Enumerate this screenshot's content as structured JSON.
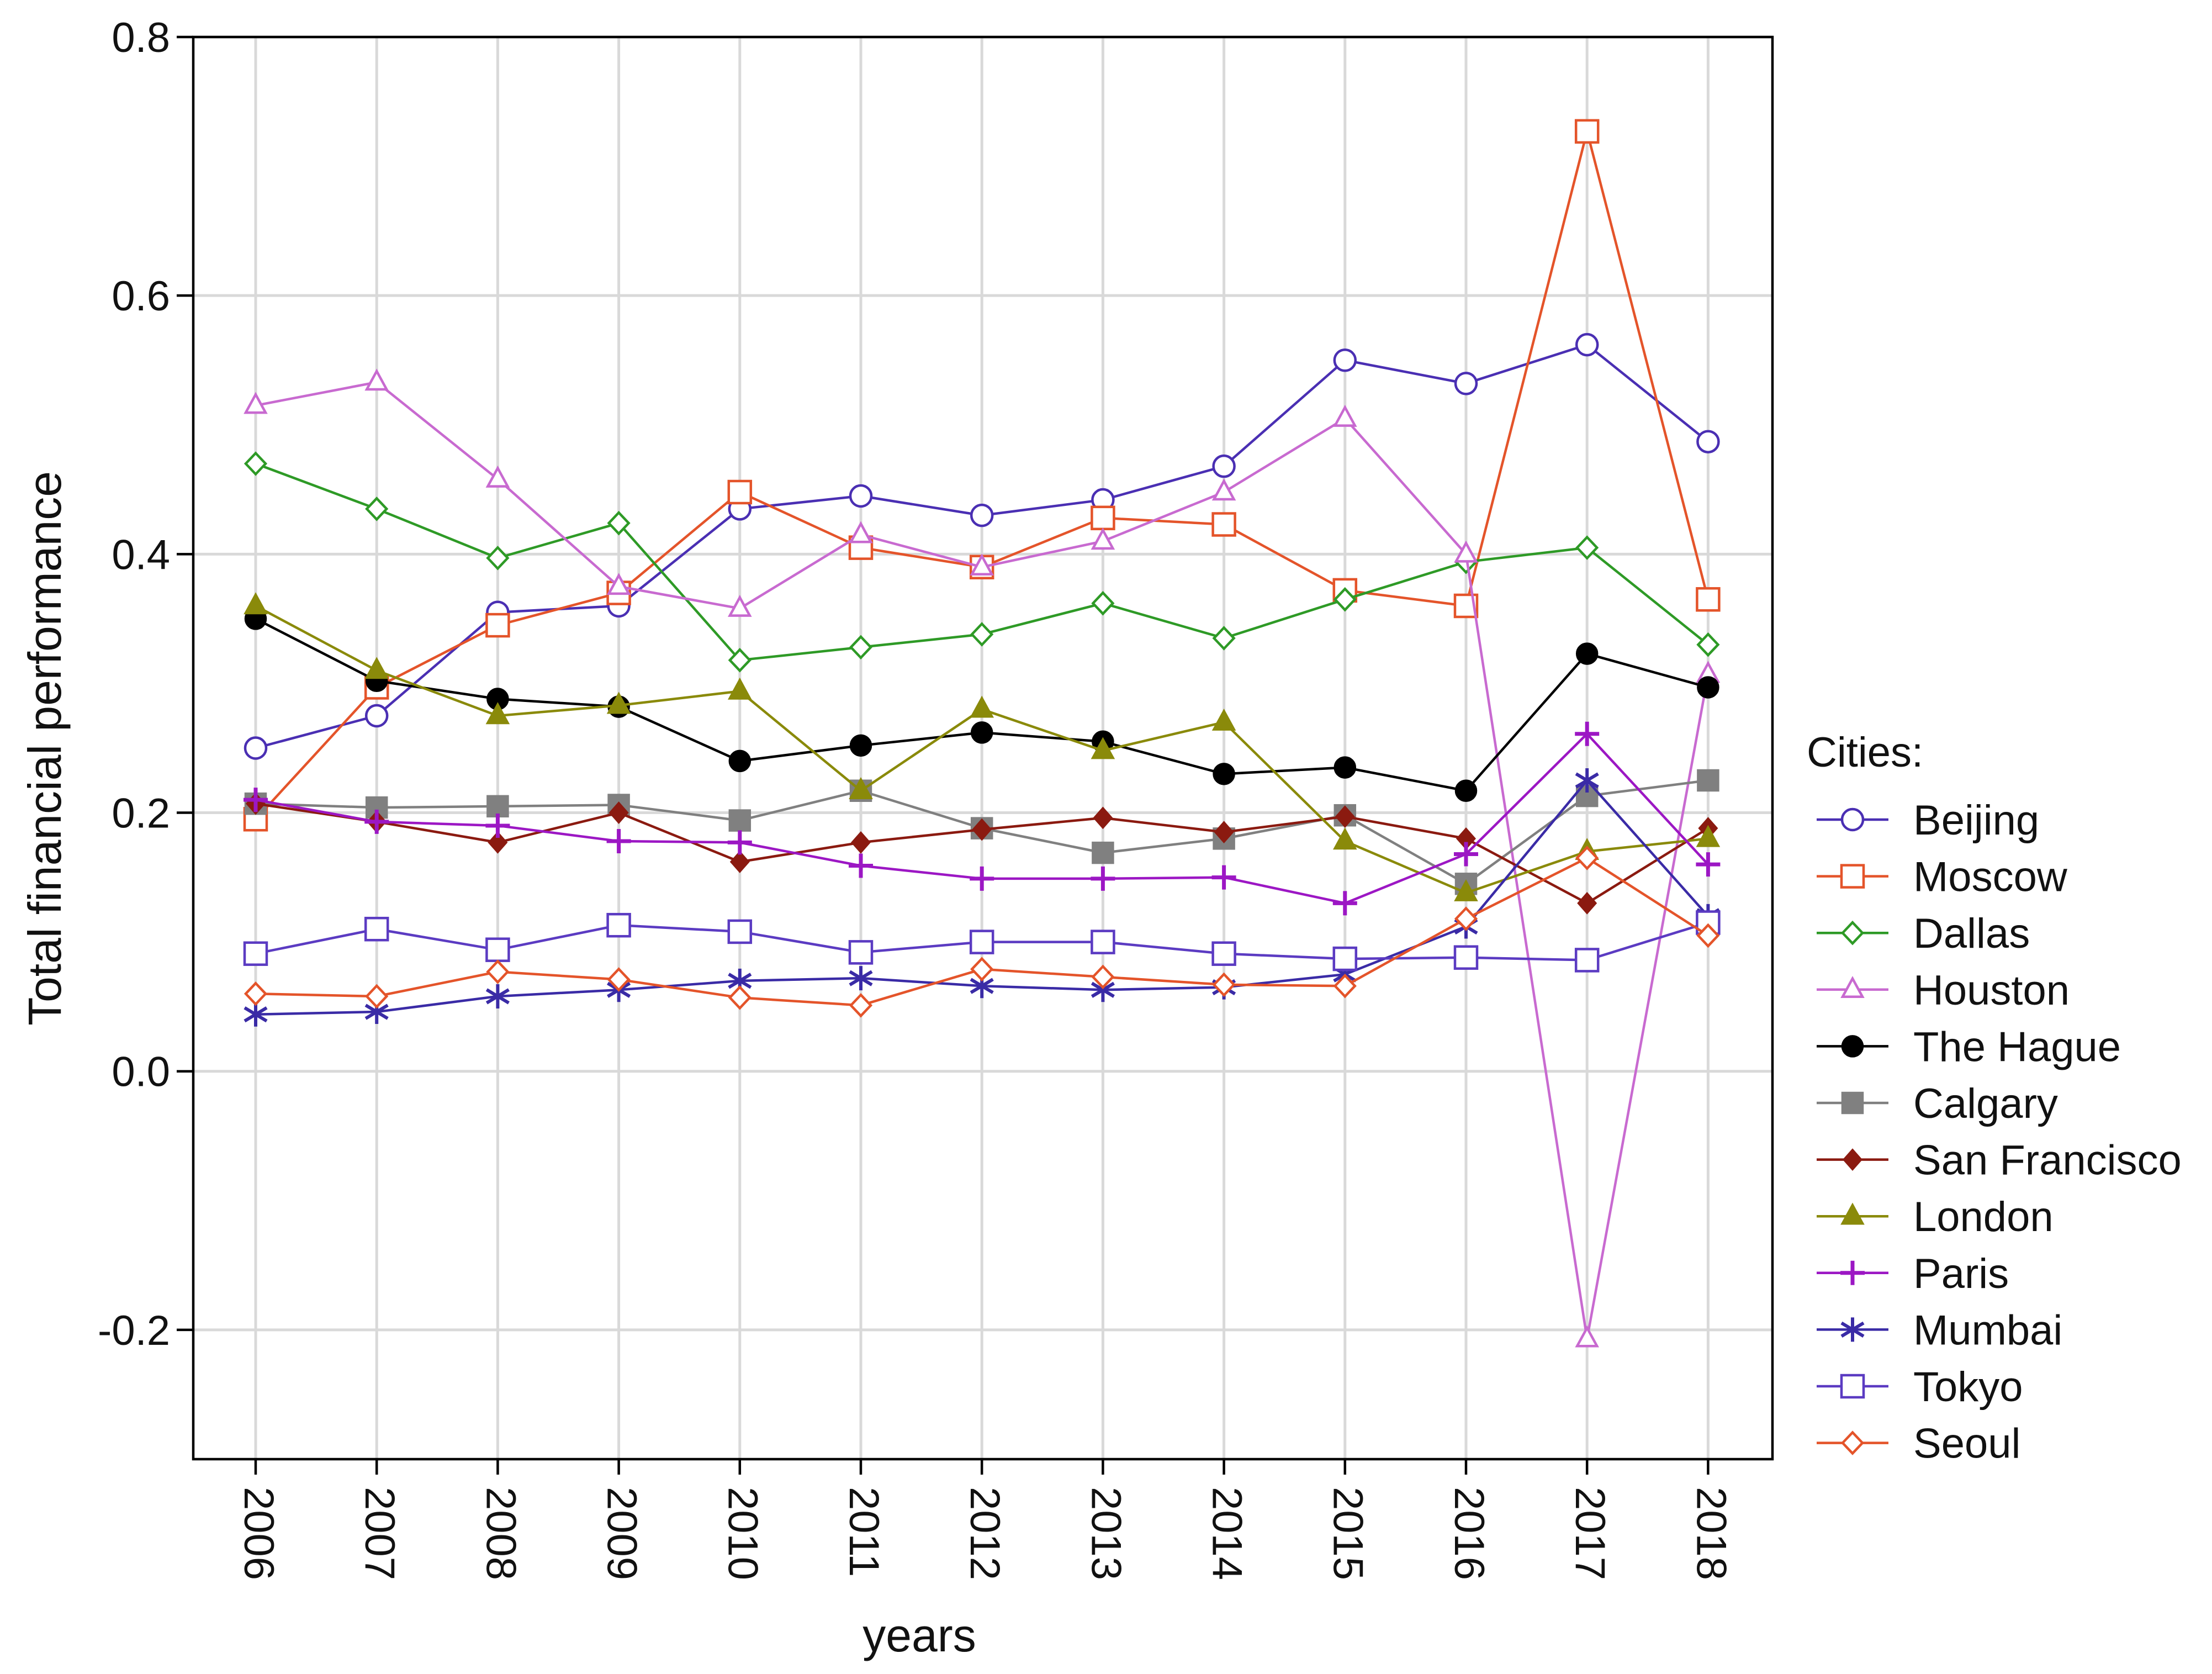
{
  "chart_data": {
    "type": "line",
    "title": "",
    "xlabel": "years",
    "ylabel": "Total financial performance",
    "ylim": [
      -0.3,
      0.8
    ],
    "yticks": [
      "0.8",
      "0.6",
      "0.4",
      "0.2",
      "0.0",
      "-0.2"
    ],
    "ytick_values": [
      0.8,
      0.6,
      0.4,
      0.2,
      0.0,
      -0.2
    ],
    "grid": true,
    "legend_title": "Cities:",
    "legend_position": "right",
    "categories": [
      "2006",
      "2007",
      "2008",
      "2009",
      "2010",
      "2011",
      "2012",
      "2013",
      "2014",
      "2015",
      "2016",
      "2017",
      "2018"
    ],
    "series": [
      {
        "name": "Beijing",
        "color": "#4a2fb3",
        "marker": "circle-open",
        "values": [
          0.25,
          0.275,
          0.355,
          0.36,
          0.435,
          0.445,
          0.43,
          0.442,
          0.468,
          0.55,
          0.532,
          0.562,
          0.487
        ]
      },
      {
        "name": "Moscow",
        "color": "#e4542a",
        "marker": "square-open",
        "values": [
          0.195,
          0.297,
          0.345,
          0.37,
          0.448,
          0.405,
          0.39,
          0.428,
          0.423,
          0.372,
          0.36,
          0.727,
          0.365
        ]
      },
      {
        "name": "Dallas",
        "color": "#2e9a26",
        "marker": "diamond-open",
        "values": [
          0.47,
          0.435,
          0.397,
          0.424,
          0.318,
          0.328,
          0.338,
          0.362,
          0.335,
          0.365,
          0.394,
          0.405,
          0.33
        ]
      },
      {
        "name": "Houston",
        "color": "#c86ad0",
        "marker": "triangle-open",
        "values": [
          0.515,
          0.533,
          0.458,
          0.375,
          0.358,
          0.415,
          0.39,
          0.41,
          0.448,
          0.505,
          0.4,
          -0.207,
          0.307
        ]
      },
      {
        "name": "The Hague",
        "color": "#000000",
        "marker": "circle-filled",
        "values": [
          0.35,
          0.302,
          0.288,
          0.282,
          0.24,
          0.252,
          0.262,
          0.255,
          0.23,
          0.235,
          0.217,
          0.323,
          0.297
        ]
      },
      {
        "name": "Calgary",
        "color": "#808080",
        "marker": "square-filled",
        "values": [
          0.207,
          0.204,
          0.205,
          0.206,
          0.194,
          0.217,
          0.188,
          0.169,
          0.18,
          0.198,
          0.145,
          0.213,
          0.225
        ]
      },
      {
        "name": "San Francisco",
        "color": "#8b1a10",
        "marker": "diamond-filled",
        "values": [
          0.207,
          0.193,
          0.177,
          0.2,
          0.162,
          0.177,
          0.187,
          0.196,
          0.185,
          0.197,
          0.18,
          0.13,
          0.188
        ]
      },
      {
        "name": "London",
        "color": "#8a8a0a",
        "marker": "triangle-filled",
        "values": [
          0.36,
          0.31,
          0.275,
          0.283,
          0.294,
          0.217,
          0.28,
          0.248,
          0.27,
          0.178,
          0.138,
          0.17,
          0.18
        ]
      },
      {
        "name": "Paris",
        "color": "#9c17c4",
        "marker": "plus",
        "values": [
          0.21,
          0.193,
          0.19,
          0.178,
          0.177,
          0.159,
          0.149,
          0.149,
          0.15,
          0.13,
          0.168,
          0.261,
          0.16
        ]
      },
      {
        "name": "Mumbai",
        "color": "#3a2ba6",
        "marker": "asterisk",
        "values": [
          0.044,
          0.046,
          0.058,
          0.063,
          0.07,
          0.072,
          0.066,
          0.063,
          0.065,
          0.075,
          0.112,
          0.225,
          0.12
        ]
      },
      {
        "name": "Tokyo",
        "color": "#5b3bc2",
        "marker": "square-open",
        "values": [
          0.091,
          0.11,
          0.094,
          0.113,
          0.108,
          0.092,
          0.1,
          0.1,
          0.091,
          0.087,
          0.088,
          0.086,
          0.115
        ]
      },
      {
        "name": "Seoul",
        "color": "#e4542a",
        "marker": "diamond-open",
        "values": [
          0.06,
          0.058,
          0.077,
          0.071,
          0.057,
          0.051,
          0.079,
          0.073,
          0.067,
          0.066,
          0.118,
          0.165,
          0.105
        ]
      }
    ]
  }
}
